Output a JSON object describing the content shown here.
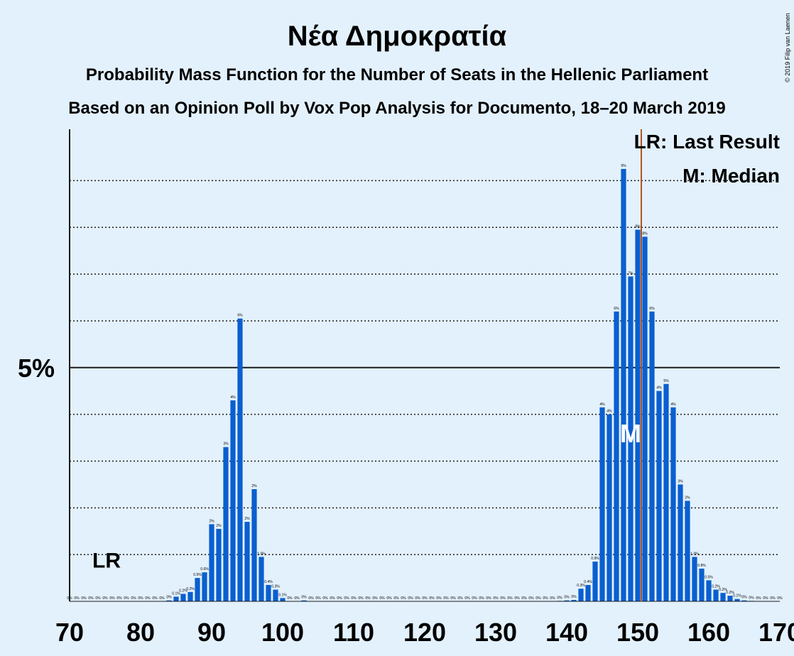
{
  "chart_data": {
    "type": "bar",
    "title": "Νέα Δημοκρατία",
    "subtitle": "Probability Mass Function for the Number of Seats in the Hellenic Parliament",
    "subtitle2": "Based on an Opinion Poll by Vox Pop Analysis for Documento, 18–20 March 2019",
    "credit": "© 2019 Filip van Laenen",
    "xlim": [
      70,
      170
    ],
    "ylim": [
      0,
      10.1
    ],
    "x_ticks": [
      70,
      80,
      90,
      100,
      110,
      120,
      130,
      140,
      150,
      160,
      170
    ],
    "y_major_tick": {
      "value": 5,
      "label": "5%"
    },
    "y_dotted_gridlines": [
      1,
      2,
      3,
      4,
      6,
      7,
      8,
      9
    ],
    "grid": true,
    "bar_color": "#0a5fcf",
    "last_result": {
      "seat": 75,
      "marker_x": 150.5,
      "label": "LR",
      "line_color": "#b3541e"
    },
    "median": {
      "seat": 149,
      "label": "M"
    },
    "legend": [
      "LR: Last Result",
      "M: Median"
    ],
    "legend_position": "top-right",
    "bars": [
      {
        "x": 70,
        "value": 0,
        "label": "0%"
      },
      {
        "x": 71,
        "value": 0,
        "label": "0%"
      },
      {
        "x": 72,
        "value": 0,
        "label": "0%"
      },
      {
        "x": 73,
        "value": 0,
        "label": "0%"
      },
      {
        "x": 74,
        "value": 0,
        "label": "0%"
      },
      {
        "x": 75,
        "value": 0,
        "label": "0%"
      },
      {
        "x": 76,
        "value": 0,
        "label": "0%"
      },
      {
        "x": 77,
        "value": 0,
        "label": "0%"
      },
      {
        "x": 78,
        "value": 0,
        "label": "0%"
      },
      {
        "x": 79,
        "value": 0,
        "label": "0%"
      },
      {
        "x": 80,
        "value": 0,
        "label": "0%"
      },
      {
        "x": 81,
        "value": 0,
        "label": "0%"
      },
      {
        "x": 82,
        "value": 0,
        "label": "0%"
      },
      {
        "x": 83,
        "value": 0,
        "label": "0%"
      },
      {
        "x": 84,
        "value": 0.02,
        "label": "0%"
      },
      {
        "x": 85,
        "value": 0.1,
        "label": "0.1%"
      },
      {
        "x": 86,
        "value": 0.16,
        "label": "0.2%"
      },
      {
        "x": 87,
        "value": 0.2,
        "label": "0.2%"
      },
      {
        "x": 88,
        "value": 0.5,
        "label": "0.5%"
      },
      {
        "x": 89,
        "value": 0.62,
        "label": "0.6%"
      },
      {
        "x": 90,
        "value": 1.65,
        "label": "2%"
      },
      {
        "x": 91,
        "value": 1.55,
        "label": "2%"
      },
      {
        "x": 92,
        "value": 3.3,
        "label": "3%"
      },
      {
        "x": 93,
        "value": 4.3,
        "label": "4%"
      },
      {
        "x": 94,
        "value": 6.05,
        "label": "6%"
      },
      {
        "x": 95,
        "value": 1.7,
        "label": "2%"
      },
      {
        "x": 96,
        "value": 2.4,
        "label": "2%"
      },
      {
        "x": 97,
        "value": 0.95,
        "label": "1.0%"
      },
      {
        "x": 98,
        "value": 0.35,
        "label": "0.4%"
      },
      {
        "x": 99,
        "value": 0.25,
        "label": "0.3%"
      },
      {
        "x": 100,
        "value": 0.07,
        "label": "0.1%"
      },
      {
        "x": 101,
        "value": 0,
        "label": "0%"
      },
      {
        "x": 102,
        "value": 0,
        "label": "0%"
      },
      {
        "x": 103,
        "value": 0.02,
        "label": "0%"
      },
      {
        "x": 104,
        "value": 0,
        "label": "0%"
      },
      {
        "x": 105,
        "value": 0,
        "label": "0%"
      },
      {
        "x": 106,
        "value": 0,
        "label": "0%"
      },
      {
        "x": 107,
        "value": 0,
        "label": "0%"
      },
      {
        "x": 108,
        "value": 0,
        "label": "0%"
      },
      {
        "x": 109,
        "value": 0,
        "label": "0%"
      },
      {
        "x": 110,
        "value": 0,
        "label": "0%"
      },
      {
        "x": 111,
        "value": 0,
        "label": "0%"
      },
      {
        "x": 112,
        "value": 0,
        "label": "0%"
      },
      {
        "x": 113,
        "value": 0,
        "label": "0%"
      },
      {
        "x": 114,
        "value": 0,
        "label": "0%"
      },
      {
        "x": 115,
        "value": 0,
        "label": "0%"
      },
      {
        "x": 116,
        "value": 0,
        "label": "0%"
      },
      {
        "x": 117,
        "value": 0,
        "label": "0%"
      },
      {
        "x": 118,
        "value": 0,
        "label": "0%"
      },
      {
        "x": 119,
        "value": 0,
        "label": "0%"
      },
      {
        "x": 120,
        "value": 0,
        "label": "0%"
      },
      {
        "x": 121,
        "value": 0,
        "label": "0%"
      },
      {
        "x": 122,
        "value": 0,
        "label": "0%"
      },
      {
        "x": 123,
        "value": 0,
        "label": "0%"
      },
      {
        "x": 124,
        "value": 0,
        "label": "0%"
      },
      {
        "x": 125,
        "value": 0,
        "label": "0%"
      },
      {
        "x": 126,
        "value": 0,
        "label": "0%"
      },
      {
        "x": 127,
        "value": 0,
        "label": "0%"
      },
      {
        "x": 128,
        "value": 0,
        "label": "0%"
      },
      {
        "x": 129,
        "value": 0,
        "label": "0%"
      },
      {
        "x": 130,
        "value": 0,
        "label": "0%"
      },
      {
        "x": 131,
        "value": 0,
        "label": "0%"
      },
      {
        "x": 132,
        "value": 0,
        "label": "0%"
      },
      {
        "x": 133,
        "value": 0,
        "label": "0%"
      },
      {
        "x": 134,
        "value": 0,
        "label": "0%"
      },
      {
        "x": 135,
        "value": 0,
        "label": "0%"
      },
      {
        "x": 136,
        "value": 0,
        "label": "0%"
      },
      {
        "x": 137,
        "value": 0,
        "label": "0%"
      },
      {
        "x": 138,
        "value": 0,
        "label": "0%"
      },
      {
        "x": 139,
        "value": 0.01,
        "label": "0%"
      },
      {
        "x": 140,
        "value": 0.02,
        "label": "0%"
      },
      {
        "x": 141,
        "value": 0.03,
        "label": "0%"
      },
      {
        "x": 142,
        "value": 0.27,
        "label": "0.3%"
      },
      {
        "x": 143,
        "value": 0.35,
        "label": "0.4%"
      },
      {
        "x": 144,
        "value": 0.85,
        "label": "0.9%"
      },
      {
        "x": 145,
        "value": 4.15,
        "label": "4%"
      },
      {
        "x": 146,
        "value": 4.0,
        "label": "4%"
      },
      {
        "x": 147,
        "value": 6.2,
        "label": "6%"
      },
      {
        "x": 148,
        "value": 9.25,
        "label": "9%"
      },
      {
        "x": 149,
        "value": 6.95,
        "label": "7%"
      },
      {
        "x": 150,
        "value": 7.95,
        "label": "8%"
      },
      {
        "x": 151,
        "value": 7.8,
        "label": "8%"
      },
      {
        "x": 152,
        "value": 6.2,
        "label": "6%"
      },
      {
        "x": 153,
        "value": 4.5,
        "label": "4%"
      },
      {
        "x": 154,
        "value": 4.65,
        "label": "5%"
      },
      {
        "x": 155,
        "value": 4.15,
        "label": "4%"
      },
      {
        "x": 156,
        "value": 2.5,
        "label": "3%"
      },
      {
        "x": 157,
        "value": 2.15,
        "label": "2%"
      },
      {
        "x": 158,
        "value": 0.95,
        "label": "1.0%"
      },
      {
        "x": 159,
        "value": 0.7,
        "label": "0.8%"
      },
      {
        "x": 160,
        "value": 0.45,
        "label": "0.5%"
      },
      {
        "x": 161,
        "value": 0.25,
        "label": "0.2%"
      },
      {
        "x": 162,
        "value": 0.18,
        "label": "0.2%"
      },
      {
        "x": 163,
        "value": 0.12,
        "label": "0.2%"
      },
      {
        "x": 164,
        "value": 0.05,
        "label": "0.1%"
      },
      {
        "x": 165,
        "value": 0.02,
        "label": "0%"
      },
      {
        "x": 166,
        "value": 0.01,
        "label": "0%"
      },
      {
        "x": 167,
        "value": 0,
        "label": "0%"
      },
      {
        "x": 168,
        "value": 0,
        "label": "0%"
      },
      {
        "x": 169,
        "value": 0,
        "label": "0%"
      },
      {
        "x": 170,
        "value": 0,
        "label": "0%"
      }
    ]
  }
}
